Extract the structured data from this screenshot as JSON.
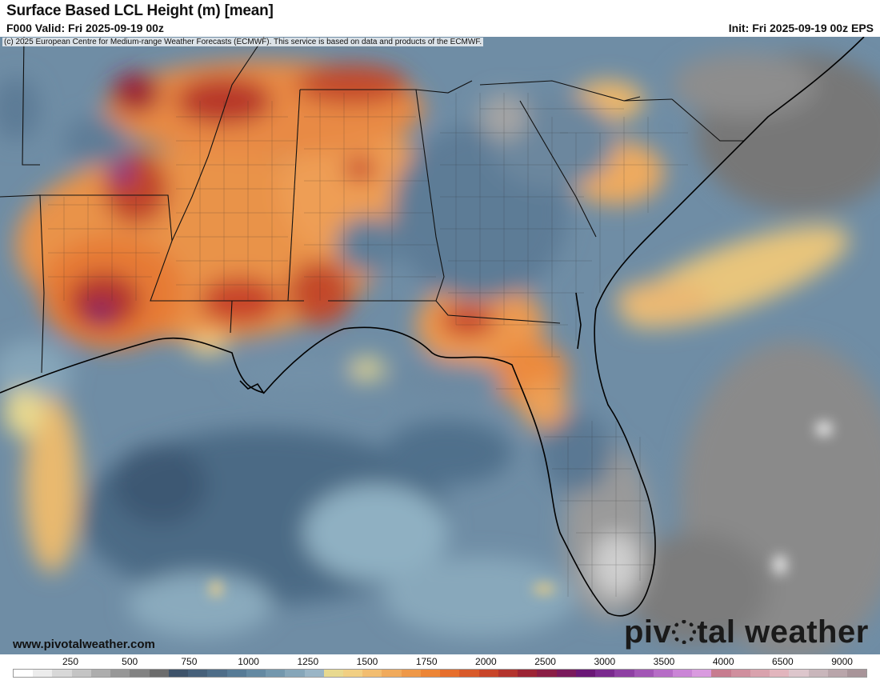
{
  "header": {
    "title": "Surface Based LCL Height (m) [mean]",
    "valid": "F000 Valid: Fri 2025-09-19 00z",
    "init": "Init: Fri 2025-09-19 00z EPS"
  },
  "copyright": "(c) 2025 European Centre for Medium-range Weather Forecasts (ECMWF). This service is based on data and products of the ECMWF.",
  "site_url": "www.pivotalweather.com",
  "logo": {
    "part1": "piv",
    "part2": "tal weather"
  },
  "legend": {
    "ticks": [
      "250",
      "500",
      "750",
      "1000",
      "1250",
      "1500",
      "1750",
      "2000",
      "2500",
      "3000",
      "3500",
      "4000",
      "6500",
      "9000"
    ],
    "colors": [
      "#ffffff",
      "#ececec",
      "#d8d8d8",
      "#c4c4c4",
      "#adadad",
      "#979797",
      "#828282",
      "#6c6c6c",
      "#3e536a",
      "#46607a",
      "#4e6d88",
      "#577b96",
      "#6489a2",
      "#7397ad",
      "#86a6b9",
      "#9ab5c6",
      "#e8d98f",
      "#f1cf83",
      "#f2bd70",
      "#f0aa5c",
      "#ee9848",
      "#ec8536",
      "#e66e2c",
      "#d85a2a",
      "#c84529",
      "#b3342d",
      "#9c2434",
      "#8a1e45",
      "#7a1a5c",
      "#6a1876",
      "#7a2a8e",
      "#8e40a3",
      "#a256b5",
      "#b66dc6",
      "#ca85d6",
      "#d99bdf",
      "#c77c8f",
      "#d08f9e",
      "#d9a2ad",
      "#e2b5bd",
      "#ddc6cc",
      "#c9b6bb",
      "#b9a5aa",
      "#a89499"
    ]
  }
}
